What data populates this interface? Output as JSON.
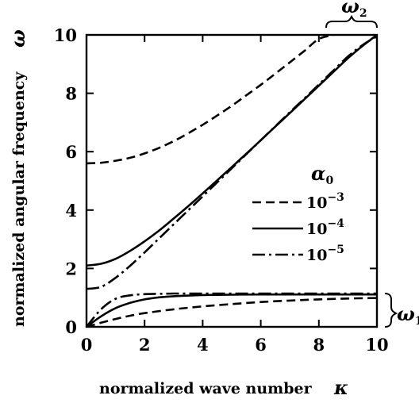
{
  "chart_data": {
    "type": "line",
    "xlabel": "normalized wave number",
    "xlabel_symbol": "κ",
    "ylabel": "normalized angular frequency",
    "ylabel_symbol": "ω",
    "xlim": [
      0,
      10
    ],
    "ylim": [
      0,
      10
    ],
    "xticks": [
      "0",
      "2",
      "4",
      "6",
      "8",
      "10"
    ],
    "yticks": [
      "0",
      "2",
      "4",
      "6",
      "8",
      "10"
    ],
    "grid": false,
    "legend": {
      "title": "α",
      "title_subscript": "0",
      "placement": "right",
      "entries": [
        {
          "base": "10",
          "exp": "−3",
          "dash": "dashed"
        },
        {
          "base": "10",
          "exp": "−4",
          "dash": "solid"
        },
        {
          "base": "10",
          "exp": "−5",
          "dash": "dashdot"
        }
      ]
    },
    "branch_labels": [
      {
        "symbol": "ω",
        "subscript": "2",
        "placement": "top-right"
      },
      {
        "symbol": "ω",
        "subscript": "1",
        "placement": "right"
      }
    ],
    "series": [
      {
        "legend": "10^-3",
        "branch": "upper",
        "dash": "dashed",
        "x": [
          0,
          0.5,
          1,
          1.5,
          2,
          2.5,
          3,
          3.5,
          4,
          4.5,
          5,
          5.5,
          6,
          6.5,
          7,
          7.5,
          8,
          8.5
        ],
        "y": [
          5.6,
          5.62,
          5.69,
          5.79,
          5.94,
          6.13,
          6.36,
          6.63,
          6.92,
          7.24,
          7.57,
          7.93,
          8.29,
          8.67,
          9.06,
          9.45,
          9.86,
          10.0
        ]
      },
      {
        "legend": "10^-4",
        "branch": "upper",
        "dash": "solid",
        "x": [
          0,
          0.5,
          1,
          1.5,
          2,
          2.5,
          3,
          3.5,
          4,
          4.5,
          5,
          5.5,
          6,
          6.5,
          7,
          7.5,
          8,
          8.5,
          9,
          9.5,
          10
        ],
        "y": [
          2.1,
          2.16,
          2.33,
          2.6,
          2.93,
          3.3,
          3.71,
          4.13,
          4.57,
          5.02,
          5.47,
          5.93,
          6.39,
          6.86,
          7.32,
          7.79,
          8.26,
          8.73,
          9.2,
          9.62,
          10.0
        ]
      },
      {
        "legend": "10^-5",
        "branch": "upper",
        "dash": "dashdot",
        "x": [
          0,
          0.5,
          1,
          1.5,
          2,
          2.5,
          3,
          3.5,
          4,
          4.5,
          5,
          5.5,
          6,
          6.5,
          7,
          7.5,
          8,
          8.5,
          9,
          9.5,
          10
        ],
        "y": [
          1.3,
          1.37,
          1.68,
          2.09,
          2.55,
          3.03,
          3.51,
          3.99,
          4.47,
          4.95,
          5.43,
          5.91,
          6.39,
          6.87,
          7.35,
          7.82,
          8.3,
          8.78,
          9.26,
          9.65,
          9.95
        ]
      },
      {
        "legend": "10^-3",
        "branch": "lower",
        "dash": "dashed",
        "x": [
          0,
          0.5,
          1,
          1.5,
          2,
          3,
          4,
          5,
          6,
          7,
          8,
          9,
          10
        ],
        "y": [
          0,
          0.14,
          0.27,
          0.38,
          0.47,
          0.6,
          0.7,
          0.78,
          0.85,
          0.9,
          0.94,
          0.97,
          0.99
        ]
      },
      {
        "legend": "10^-4",
        "branch": "lower",
        "dash": "solid",
        "x": [
          0,
          0.5,
          1,
          1.5,
          2,
          2.5,
          3,
          4,
          5,
          6,
          7,
          8,
          9,
          10
        ],
        "y": [
          0,
          0.36,
          0.64,
          0.82,
          0.94,
          1.01,
          1.05,
          1.09,
          1.1,
          1.11,
          1.11,
          1.11,
          1.11,
          1.11
        ]
      },
      {
        "legend": "10^-5",
        "branch": "lower",
        "dash": "dashdot",
        "x": [
          0,
          0.5,
          1,
          1.5,
          2,
          2.5,
          3,
          4,
          5,
          6,
          7,
          8,
          9,
          10
        ],
        "y": [
          0,
          0.6,
          0.96,
          1.08,
          1.12,
          1.13,
          1.14,
          1.14,
          1.14,
          1.14,
          1.14,
          1.14,
          1.14,
          1.14
        ]
      }
    ]
  }
}
